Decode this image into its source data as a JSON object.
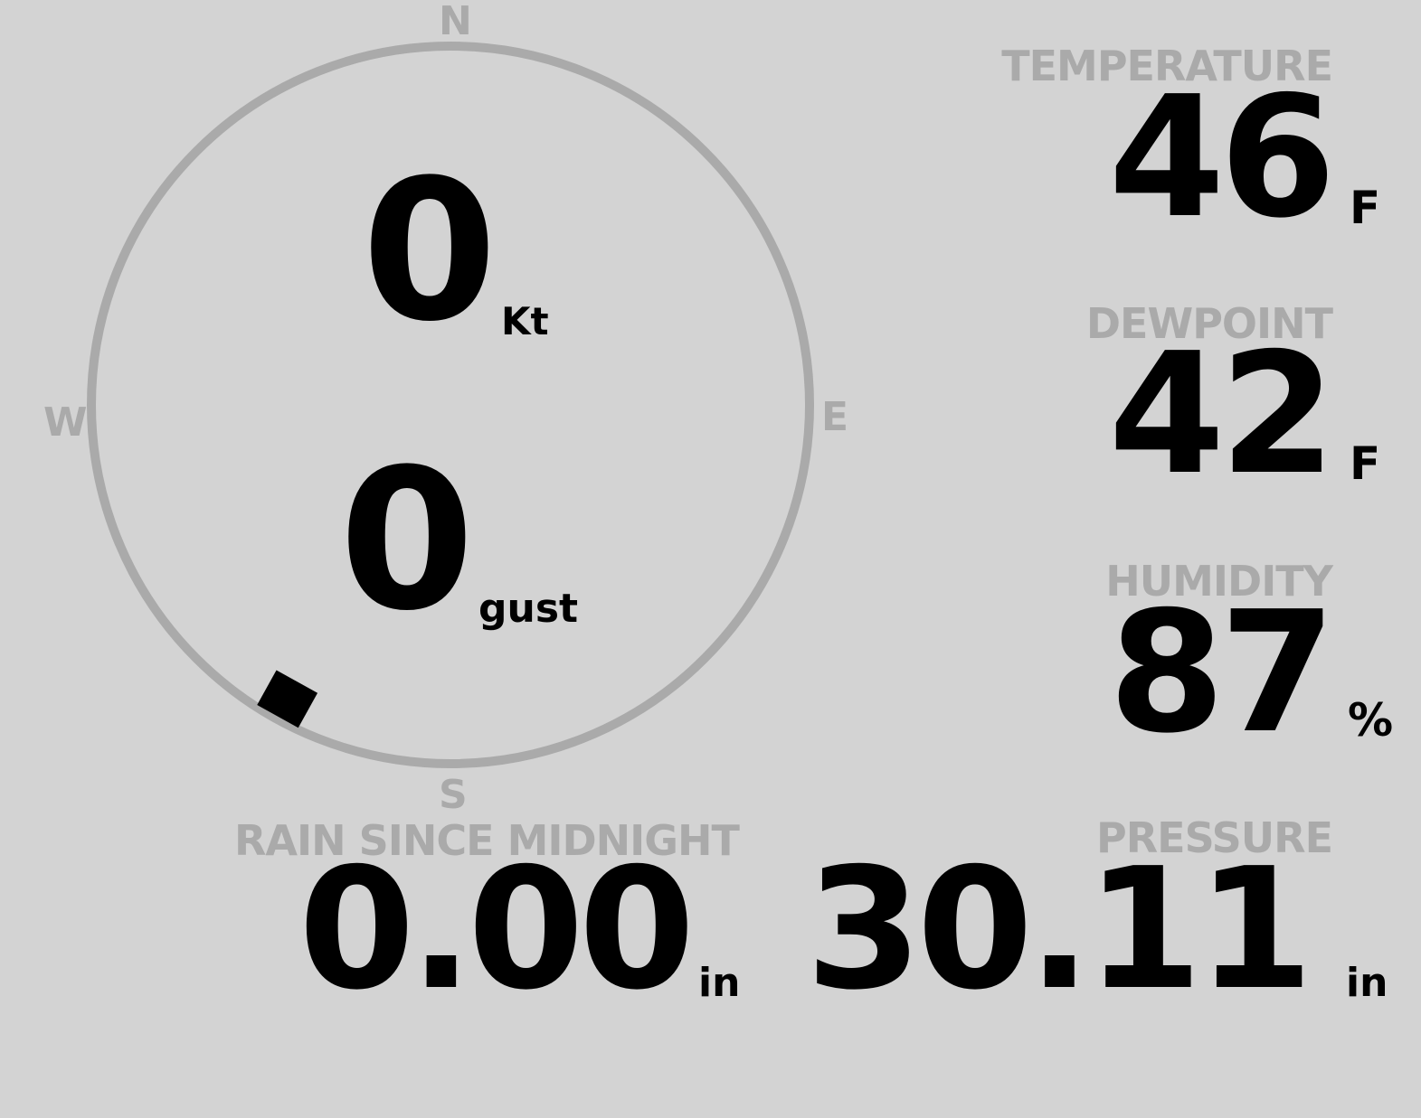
{
  "compass": {
    "north": "N",
    "south": "S",
    "east": "E",
    "west": "W",
    "wind_direction_deg": 209,
    "ring_color": "#aaaaaa"
  },
  "wind": {
    "speed": "0",
    "speed_unit": "Kt",
    "gust": "0",
    "gust_unit": "gust"
  },
  "temperature": {
    "label": "TEMPERATURE",
    "value": "46",
    "unit": "F"
  },
  "dewpoint": {
    "label": "DEWPOINT",
    "value": "42",
    "unit": "F"
  },
  "humidity": {
    "label": "HUMIDITY",
    "value": "87",
    "unit": "%"
  },
  "rain": {
    "label": "RAIN SINCE MIDNIGHT",
    "value": "0.00",
    "unit": "in"
  },
  "pressure": {
    "label": "PRESSURE",
    "value": "30.11",
    "unit": "in"
  },
  "colors": {
    "background": "#d3d3d3",
    "label": "#aaaaaa",
    "value": "#000000"
  }
}
